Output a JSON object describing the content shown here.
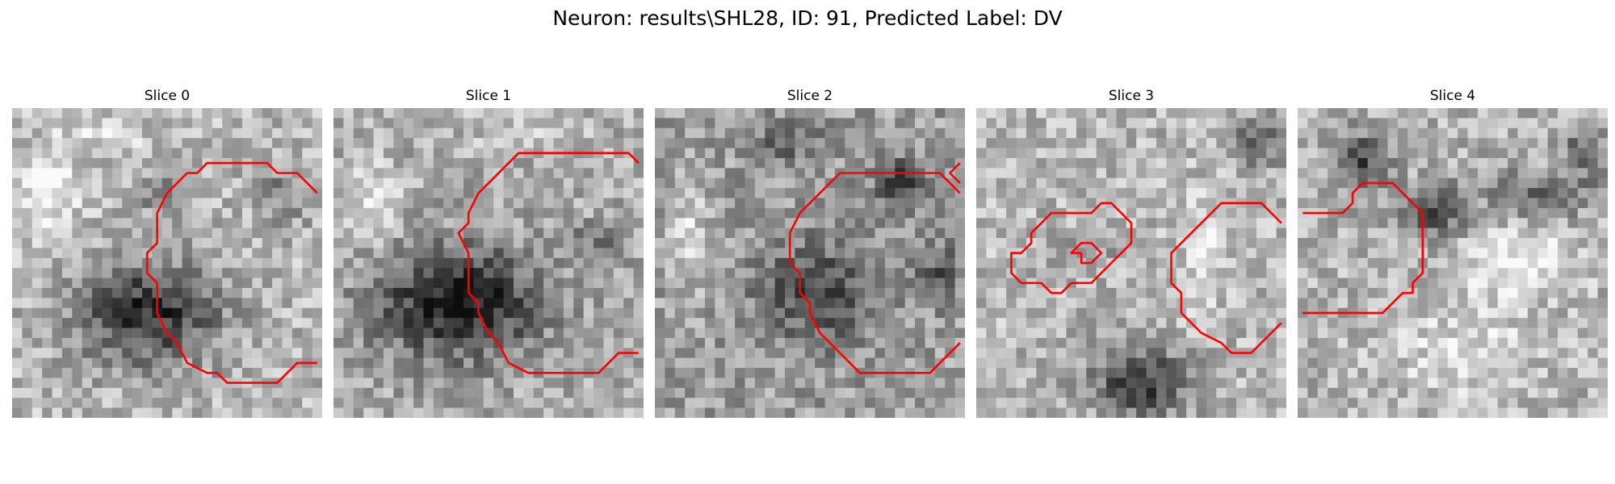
{
  "figure": {
    "title": "Neuron: results\\SHL28, ID: 91, Predicted Label: DV"
  },
  "panels": [
    {
      "title": "Slice 0"
    },
    {
      "title": "Slice 1"
    },
    {
      "title": "Slice 2"
    },
    {
      "title": "Slice 3"
    },
    {
      "title": "Slice 4"
    }
  ],
  "colors": {
    "contour": "#ff0000",
    "background": "#ffffff"
  }
}
